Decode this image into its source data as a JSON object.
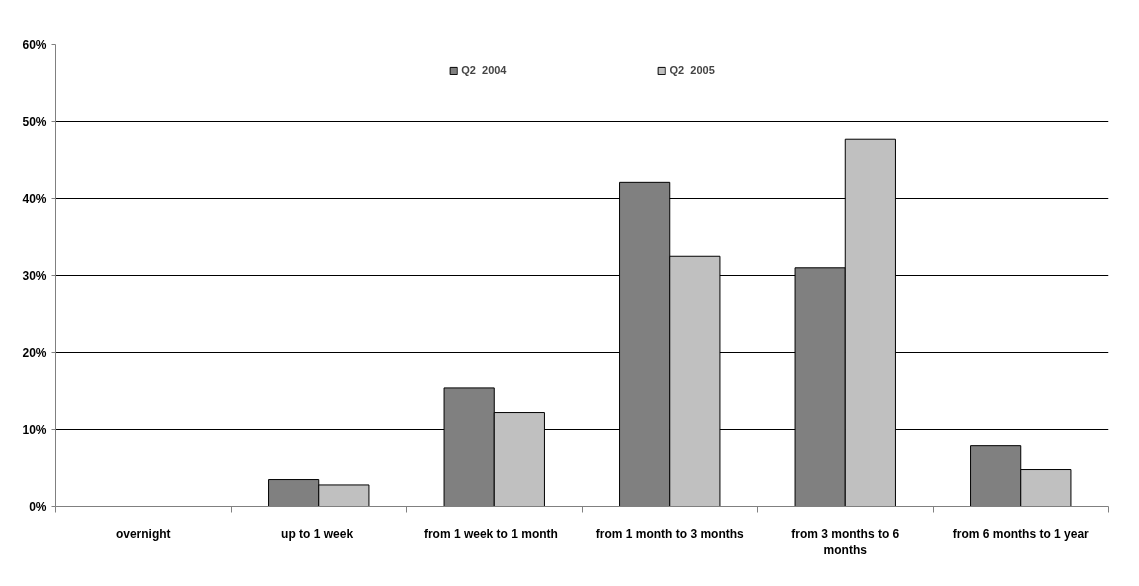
{
  "chart_data": {
    "type": "bar",
    "categories": [
      "overnight",
      "up to 1  week",
      "from 1 week  to 1  month",
      "from 1 month to 3 months",
      "from 3 months to 6 months",
      "from 6 months to 1 year"
    ],
    "series": [
      {
        "name": "Q2  2004",
        "color": "#808080",
        "values": [
          null,
          3.5,
          15.4,
          42.1,
          31.0,
          7.9
        ]
      },
      {
        "name": "Q2  2005",
        "color": "#c0c0c0",
        "values": [
          null,
          2.8,
          12.2,
          32.5,
          47.7,
          4.8
        ]
      }
    ],
    "ylim": [
      0,
      60
    ],
    "yticks": [
      {
        "value": 0,
        "label": "0%"
      },
      {
        "value": 10,
        "label": "10%"
      },
      {
        "value": 20,
        "label": "20%"
      },
      {
        "value": 30,
        "label": "30%"
      },
      {
        "value": 40,
        "label": "40%"
      },
      {
        "value": 50,
        "label": "50%"
      },
      {
        "value": 60,
        "label": "60%"
      }
    ],
    "grid": "y",
    "legend": "top"
  }
}
